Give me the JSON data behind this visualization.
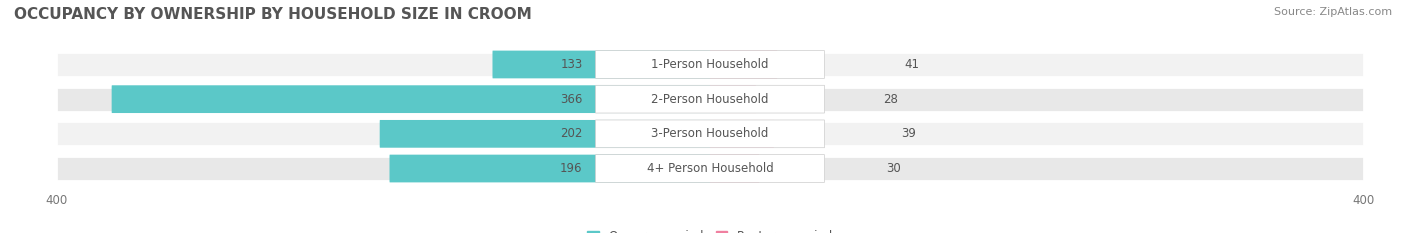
{
  "title": "OCCUPANCY BY OWNERSHIP BY HOUSEHOLD SIZE IN CROOM",
  "source": "Source: ZipAtlas.com",
  "categories": [
    "1-Person Household",
    "2-Person Household",
    "3-Person Household",
    "4+ Person Household"
  ],
  "owner_values": [
    133,
    366,
    202,
    196
  ],
  "renter_values": [
    41,
    28,
    39,
    30
  ],
  "owner_color": "#5bc8c8",
  "renter_color": "#f080a0",
  "row_bg_colors": [
    "#f2f2f2",
    "#e8e8e8",
    "#f2f2f2",
    "#e8e8e8"
  ],
  "x_max": 400,
  "title_fontsize": 11,
  "label_fontsize": 8.5,
  "tick_fontsize": 8.5,
  "source_fontsize": 8,
  "legend_fontsize": 8.5,
  "figsize": [
    14.06,
    2.33
  ],
  "dpi": 100
}
